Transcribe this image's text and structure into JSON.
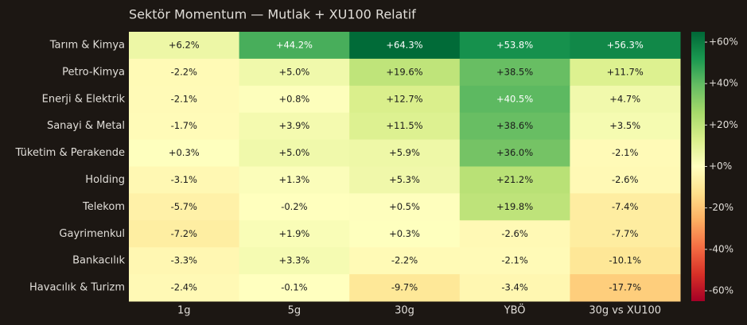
{
  "chart_data": {
    "type": "heatmap",
    "title": "Sektör Momentum — Mutlak + XU100 Relatif",
    "rows": [
      "Tarım & Kimya",
      "Petro-Kimya",
      "Enerji & Elektrik",
      "Sanayi & Metal",
      "Tüketim & Perakende",
      "Holding",
      "Telekom",
      "Gayrimenkul",
      "Bankacılık",
      "Havacılık & Turizm"
    ],
    "columns": [
      "1g",
      "5g",
      "30g",
      "YBÖ",
      "30g vs XU100"
    ],
    "values": [
      [
        6.2,
        44.2,
        64.3,
        53.8,
        56.3
      ],
      [
        -2.2,
        5.0,
        19.6,
        38.5,
        11.7
      ],
      [
        -2.1,
        0.8,
        12.7,
        40.5,
        4.7
      ],
      [
        -1.7,
        3.9,
        11.5,
        38.6,
        3.5
      ],
      [
        0.3,
        5.0,
        5.9,
        36.0,
        -2.1
      ],
      [
        -3.1,
        1.3,
        5.3,
        21.2,
        -2.6
      ],
      [
        -5.7,
        -0.2,
        0.5,
        19.8,
        -7.4
      ],
      [
        -7.2,
        1.9,
        0.3,
        -2.6,
        -7.7
      ],
      [
        -3.3,
        3.3,
        -2.2,
        -2.1,
        -10.1
      ],
      [
        -2.4,
        -0.1,
        -9.7,
        -3.4,
        -17.7
      ]
    ],
    "value_labels": [
      [
        "+6.2%",
        "+44.2%",
        "+64.3%",
        "+53.8%",
        "+56.3%"
      ],
      [
        "-2.2%",
        "+5.0%",
        "+19.6%",
        "+38.5%",
        "+11.7%"
      ],
      [
        "-2.1%",
        "+0.8%",
        "+12.7%",
        "+40.5%",
        "+4.7%"
      ],
      [
        "-1.7%",
        "+3.9%",
        "+11.5%",
        "+38.6%",
        "+3.5%"
      ],
      [
        "+0.3%",
        "+5.0%",
        "+5.9%",
        "+36.0%",
        "-2.1%"
      ],
      [
        "-3.1%",
        "+1.3%",
        "+5.3%",
        "+21.2%",
        "-2.6%"
      ],
      [
        "-5.7%",
        "-0.2%",
        "+0.5%",
        "+19.8%",
        "-7.4%"
      ],
      [
        "-7.2%",
        "+1.9%",
        "+0.3%",
        "-2.6%",
        "-7.7%"
      ],
      [
        "-3.3%",
        "+3.3%",
        "-2.2%",
        "-2.1%",
        "-10.1%"
      ],
      [
        "-2.4%",
        "-0.1%",
        "-9.7%",
        "-3.4%",
        "-17.7%"
      ]
    ],
    "colormap": "RdYlGn",
    "colorbar": {
      "lim": [
        -65,
        65
      ],
      "ticks": [
        {
          "value": 60,
          "label": "+60%"
        },
        {
          "value": 40,
          "label": "+40%"
        },
        {
          "value": 20,
          "label": "+20%"
        },
        {
          "value": 0,
          "label": "+0%"
        },
        {
          "value": -20,
          "label": "-20%"
        },
        {
          "value": -40,
          "label": "-40%"
        },
        {
          "value": -60,
          "label": "-60%"
        }
      ]
    }
  }
}
